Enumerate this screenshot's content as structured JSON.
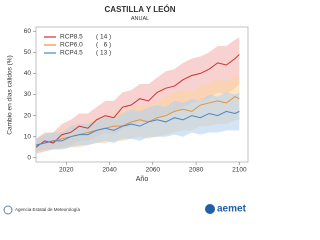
{
  "chart_data": {
    "type": "line-band",
    "title": "CASTILLA Y LEÓN",
    "subtitle": "ANUAL",
    "xlabel": "Año",
    "ylabel": "Cambio en días cálidos (%)",
    "x": [
      2006,
      2010,
      2014,
      2018,
      2022,
      2026,
      2030,
      2034,
      2038,
      2042,
      2046,
      2050,
      2054,
      2058,
      2062,
      2066,
      2070,
      2074,
      2078,
      2082,
      2086,
      2090,
      2094,
      2098,
      2100
    ],
    "xlim": [
      2006,
      2104
    ],
    "xticks": [
      2020,
      2040,
      2060,
      2080,
      2100
    ],
    "ylim": [
      -2,
      62
    ],
    "yticks": [
      0,
      10,
      20,
      30,
      40,
      50,
      60
    ],
    "series": [
      {
        "name": "RCP8.5",
        "count": "( 14 )",
        "color": "#cc3333",
        "band_color": "#f3b3b3",
        "values": [
          5,
          8,
          7,
          11,
          12,
          15,
          14,
          18,
          20,
          19,
          24,
          25,
          28,
          27,
          31,
          33,
          34,
          37,
          39,
          40,
          42,
          45,
          44,
          47,
          49
        ],
        "lower": [
          2,
          3,
          4,
          5,
          6,
          8,
          8,
          10,
          12,
          11,
          14,
          15,
          17,
          17,
          19,
          21,
          22,
          24,
          26,
          27,
          28,
          31,
          30,
          33,
          35
        ],
        "upper": [
          9,
          12,
          12,
          16,
          18,
          21,
          21,
          24,
          27,
          27,
          31,
          32,
          35,
          35,
          38,
          41,
          42,
          45,
          47,
          48,
          50,
          53,
          53,
          56,
          57
        ]
      },
      {
        "name": "RCP6.0",
        "count": "(   6 )",
        "color": "#e8923a",
        "band_color": "#fbd3a0",
        "values": [
          6,
          7,
          8,
          9,
          10,
          11,
          12,
          13,
          14,
          15,
          15,
          17,
          18,
          17,
          19,
          20,
          22,
          23,
          22,
          25,
          26,
          27,
          26,
          29,
          28
        ],
        "lower": [
          3,
          3,
          4,
          4,
          5,
          5,
          6,
          7,
          7,
          8,
          8,
          9,
          10,
          9,
          10,
          11,
          12,
          13,
          13,
          15,
          15,
          16,
          16,
          18,
          18
        ],
        "upper": [
          9,
          11,
          12,
          13,
          15,
          16,
          17,
          19,
          20,
          21,
          22,
          24,
          25,
          25,
          27,
          29,
          31,
          32,
          31,
          34,
          35,
          37,
          36,
          39,
          38
        ]
      },
      {
        "name": "RCP4.5",
        "count": "( 13 )",
        "color": "#4a86c8",
        "band_color": "#b5d2ec",
        "values": [
          6,
          7,
          8,
          8,
          10,
          11,
          11,
          13,
          14,
          13,
          15,
          16,
          15,
          17,
          18,
          17,
          19,
          18,
          20,
          19,
          21,
          20,
          22,
          21,
          22
        ],
        "lower": [
          3,
          4,
          4,
          4,
          5,
          6,
          6,
          7,
          8,
          7,
          9,
          9,
          8,
          10,
          10,
          10,
          11,
          10,
          12,
          11,
          12,
          12,
          13,
          13,
          13
        ],
        "upper": [
          9,
          11,
          12,
          12,
          15,
          16,
          16,
          18,
          20,
          19,
          21,
          23,
          22,
          24,
          25,
          24,
          27,
          26,
          28,
          27,
          30,
          29,
          31,
          30,
          31
        ]
      }
    ]
  },
  "footer": {
    "agency": "Agencia Estatal de Meteorología",
    "logo": "aemet"
  }
}
